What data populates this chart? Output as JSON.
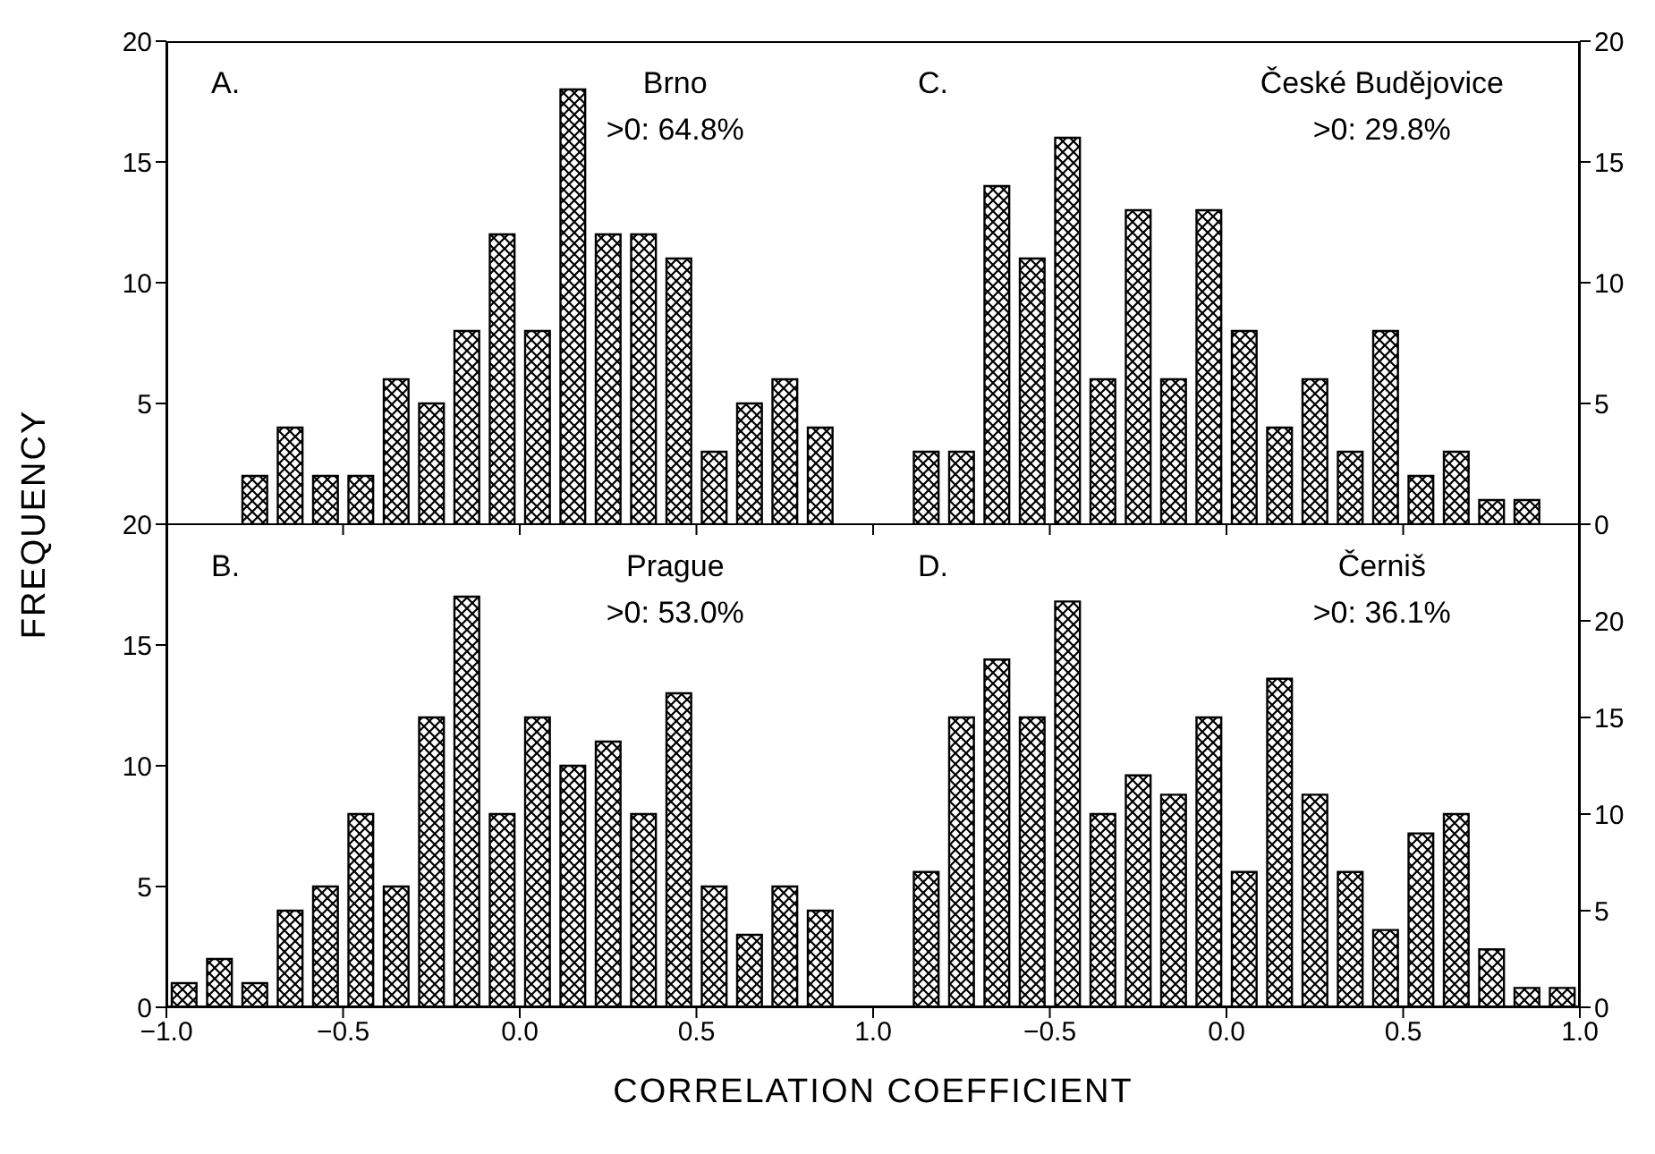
{
  "chart_data": [
    {
      "type": "histogram",
      "ylabel": "FREQUENCY",
      "annotations": [
        "A.",
        "Brno",
        ">0: 64.8%"
      ],
      "color": "#000000",
      "bins": [
        -1.0,
        -0.9,
        -0.8,
        -0.7,
        -0.6,
        -0.5,
        -0.4,
        -0.3,
        -0.2,
        -0.1,
        0.0,
        0.1,
        0.2,
        0.3,
        0.4,
        0.5,
        0.6,
        0.7,
        0.8,
        0.9,
        1.0
      ],
      "values": [
        0,
        0,
        2,
        4,
        2,
        2,
        6,
        5,
        8,
        12,
        8,
        18,
        12,
        12,
        11,
        3,
        5,
        6,
        4,
        0
      ],
      "xlim": [
        -1,
        1
      ],
      "xticks": [
        {
          "value": -1,
          "label": null
        },
        {
          "value": -0.5,
          "label": null
        },
        {
          "value": 0,
          "label": null
        },
        {
          "value": 0.5,
          "label": null
        },
        {
          "value": 1,
          "label": null
        }
      ],
      "ylim": [
        0,
        20
      ],
      "yticks": [
        {
          "value": 0,
          "label": null
        },
        5,
        10,
        15,
        20
      ],
      "tick_labels": "y"
    },
    {
      "type": "histogram",
      "annotations": [
        "C.",
        "České Budějovice",
        ">0: 29.8%"
      ],
      "color": "#000000",
      "bins": [
        -1.0,
        -0.9,
        -0.8,
        -0.7,
        -0.6,
        -0.5,
        -0.4,
        -0.3,
        -0.2,
        -0.1,
        0.0,
        0.1,
        0.2,
        0.3,
        0.4,
        0.5,
        0.6,
        0.7,
        0.8,
        0.9,
        1.0
      ],
      "values": [
        0,
        3,
        3,
        14,
        11,
        16,
        6,
        13,
        6,
        13,
        8,
        4,
        6,
        3,
        8,
        2,
        3,
        1,
        1,
        0
      ],
      "xlim": [
        -1,
        1
      ],
      "xticks": [
        {
          "value": -1,
          "label": null
        },
        {
          "value": -0.5,
          "label": null
        },
        {
          "value": 0,
          "label": null
        },
        {
          "value": 0.5,
          "label": null
        },
        {
          "value": 1,
          "label": null
        }
      ],
      "ylim": [
        0,
        20
      ],
      "yticks": [
        0,
        5,
        10,
        15,
        20
      ],
      "tick_labels": "y"
    },
    {
      "type": "histogram",
      "xlabel": "CORRELATION COEFFICIENT",
      "annotations": [
        "B.",
        "Prague",
        ">0: 53.0%"
      ],
      "color": "#000000",
      "bins": [
        -1.0,
        -0.9,
        -0.8,
        -0.7,
        -0.6,
        -0.5,
        -0.4,
        -0.3,
        -0.2,
        -0.1,
        0.0,
        0.1,
        0.2,
        0.3,
        0.4,
        0.5,
        0.6,
        0.7,
        0.8,
        0.9,
        1.0
      ],
      "values": [
        1,
        2,
        1,
        4,
        5,
        8,
        5,
        12,
        17,
        8,
        12,
        10,
        11,
        8,
        13,
        5,
        3,
        5,
        4,
        0
      ],
      "xlim": [
        -1,
        1
      ],
      "xticks": [
        {
          "value": -1,
          "label": "−1.0"
        },
        {
          "value": -0.5,
          "label": "−0.5"
        },
        {
          "value": 0,
          "label": "0.0"
        },
        {
          "value": 0.5,
          "label": "0.5"
        },
        {
          "value": 1,
          "label": "1.0"
        }
      ],
      "ylim": [
        0,
        20
      ],
      "yticks": [
        0,
        5,
        10,
        15,
        20
      ]
    },
    {
      "type": "histogram",
      "annotations": [
        "D.",
        "Černiš",
        ">0: 36.1%"
      ],
      "color": "#000000",
      "bins": [
        -1.0,
        -0.9,
        -0.8,
        -0.7,
        -0.6,
        -0.5,
        -0.4,
        -0.3,
        -0.2,
        -0.1,
        0.0,
        0.1,
        0.2,
        0.3,
        0.4,
        0.5,
        0.6,
        0.7,
        0.8,
        0.9,
        1.0
      ],
      "values": [
        0,
        7,
        15,
        18,
        15,
        21,
        10,
        12,
        11,
        15,
        7,
        17,
        11,
        7,
        4,
        9,
        10,
        3,
        1,
        1
      ],
      "xlim": [
        -1,
        1
      ],
      "xticks": [
        {
          "value": -1,
          "label": null
        },
        {
          "value": -0.5,
          "label": "−0.5"
        },
        {
          "value": 0,
          "label": "0.0"
        },
        {
          "value": 0.5,
          "label": "0.5"
        },
        {
          "value": 1,
          "label": "1.0"
        }
      ],
      "ylim": [
        0,
        25
      ],
      "yticks": [
        0,
        5,
        10,
        15,
        20,
        {
          "value": 25,
          "label": null
        }
      ]
    }
  ]
}
